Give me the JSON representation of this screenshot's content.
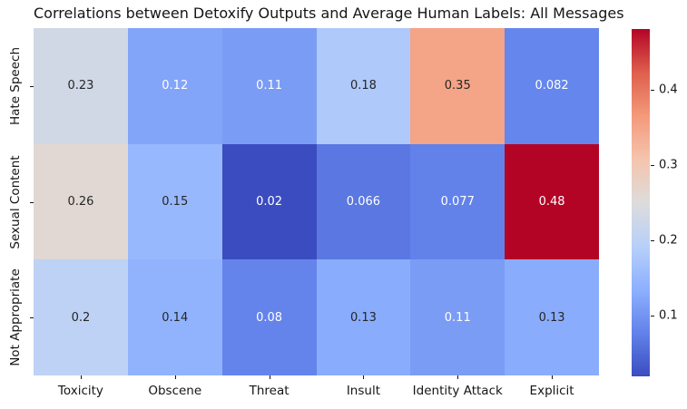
{
  "title": "Correlations between Detoxify Outputs and Average Human Labels: All Messages",
  "chart_data": {
    "type": "heatmap",
    "title": "Correlations between Detoxify Outputs and Average Human Labels: All Messages",
    "x_categories": [
      "Toxicity",
      "Obscene",
      "Threat",
      "Insult",
      "Identity Attack",
      "Explicit"
    ],
    "y_categories": [
      "Hate Speech",
      "Sexual Content",
      "Not Appropriate"
    ],
    "values": [
      [
        0.23,
        0.12,
        0.11,
        0.18,
        0.35,
        0.082
      ],
      [
        0.26,
        0.15,
        0.02,
        0.066,
        0.077,
        0.48
      ],
      [
        0.2,
        0.14,
        0.08,
        0.13,
        0.11,
        0.13
      ]
    ],
    "cell_labels": [
      [
        "0.23",
        "0.12",
        "0.11",
        "0.18",
        "0.35",
        "0.082"
      ],
      [
        "0.26",
        "0.15",
        "0.02",
        "0.066",
        "0.077",
        "0.48"
      ],
      [
        "0.2",
        "0.14",
        "0.08",
        "0.13",
        "0.11",
        "0.13"
      ]
    ],
    "colormap": "coolwarm",
    "colormap_stops": [
      "#3b4cc0",
      "#6282ea",
      "#8db0fe",
      "#b8d0f9",
      "#dddcdb",
      "#f5c4ad",
      "#f4997a",
      "#de5f4d",
      "#b40426"
    ],
    "vmin": 0.02,
    "vmax": 0.48,
    "colorbar_ticks": [
      0.1,
      0.2,
      0.3,
      0.4
    ],
    "colorbar_tick_labels": [
      "0.1",
      "0.2",
      "0.3",
      "0.4"
    ],
    "colorbar_position": "right",
    "grid": false,
    "xlabel": "",
    "ylabel": ""
  },
  "colors": {
    "background": "#ffffff",
    "annot_dark_text": "#262626",
    "annot_light_text": "#ffffff",
    "axis_text": "#151515"
  }
}
